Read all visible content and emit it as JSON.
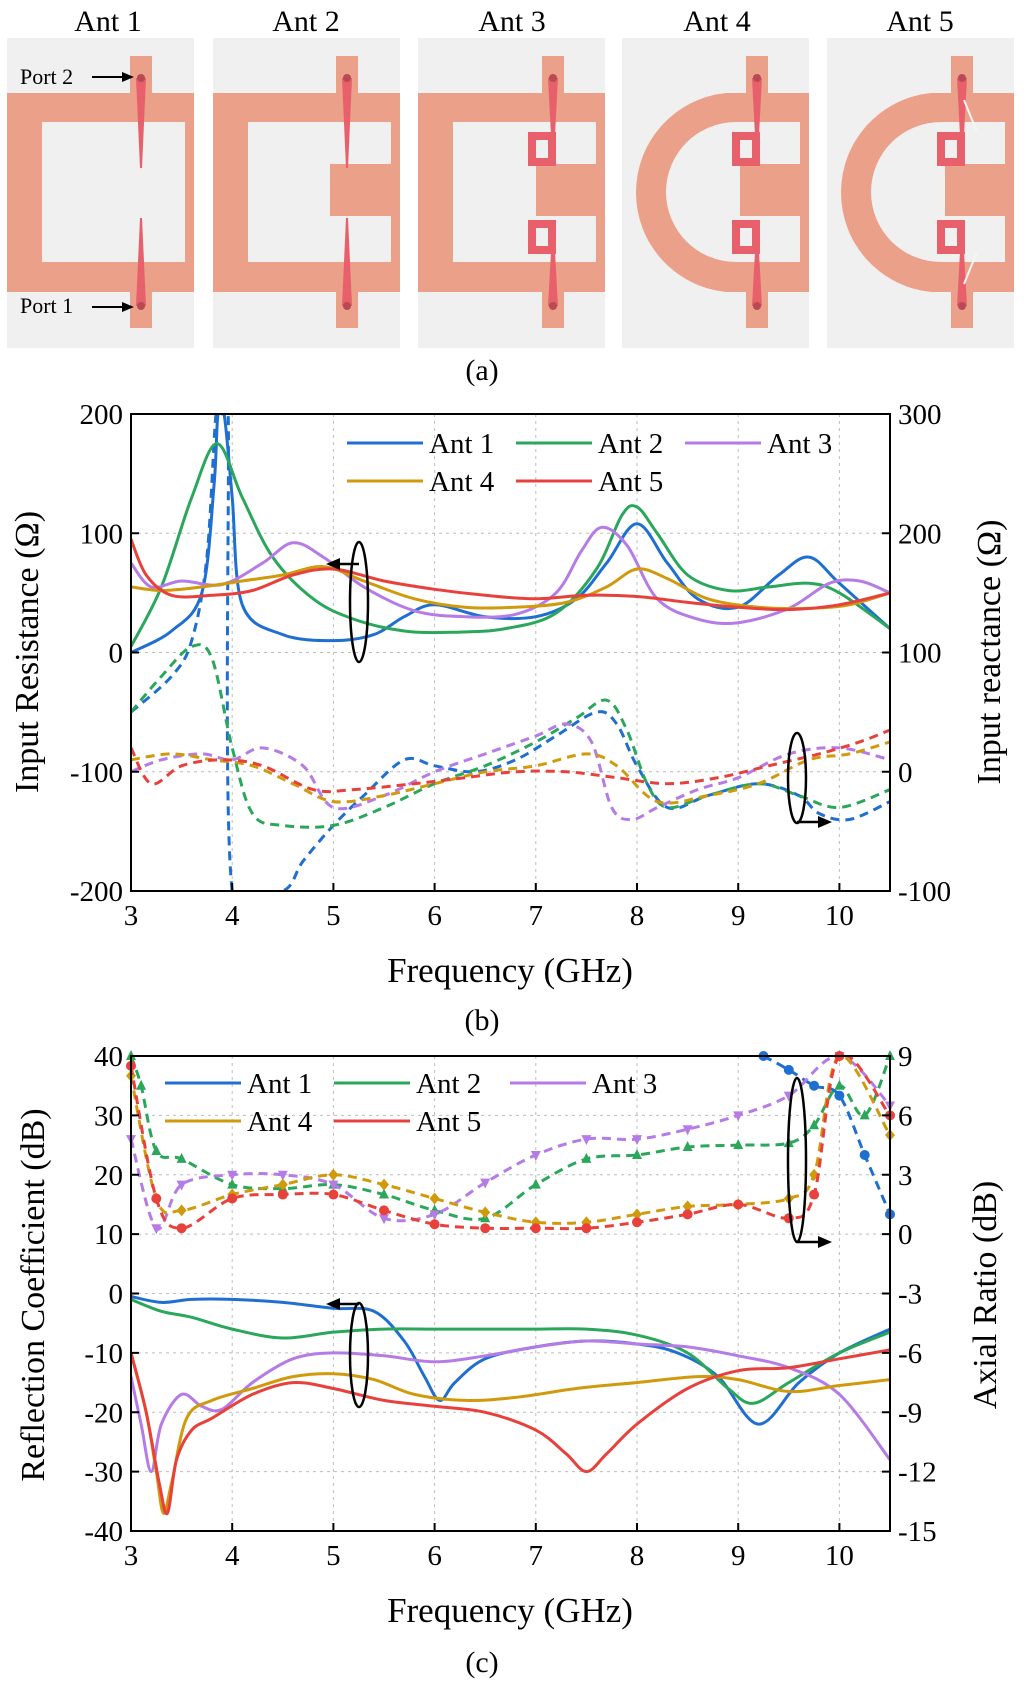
{
  "colors": {
    "substrate": "#f0f0f0",
    "patch": "#eba08a",
    "feed": "#e8606b",
    "ant1": "#1f6fd1",
    "ant2": "#2aa75a",
    "ant3": "#b57be6",
    "ant4": "#d19a0c",
    "ant5": "#e8413c"
  },
  "panel_a": {
    "titles": [
      "Ant 1",
      "Ant 2",
      "Ant 3",
      "Ant 4",
      "Ant 5"
    ],
    "port2_label": "Port 2",
    "port1_label": "Port 1",
    "caption": "(a)"
  },
  "panel_b": {
    "caption": "(b)"
  },
  "panel_c": {
    "caption": "(c)"
  },
  "chart_data": [
    {
      "type": "line",
      "panel": "b",
      "xlabel": "Frequency (GHz)",
      "ylabel": "Input Resistance (Ω)",
      "y2label": "Input reactance (Ω)",
      "xlim": [
        3,
        10.5
      ],
      "ylim": [
        -200,
        200
      ],
      "y2lim": [
        -100,
        300
      ],
      "xticks": [
        "3",
        "4",
        "5",
        "6",
        "7",
        "8",
        "9",
        "10"
      ],
      "yticks": [
        "200",
        "100",
        "0",
        "-100",
        "-200"
      ],
      "y2ticks": [
        "300",
        "200",
        "100",
        "0",
        "-100"
      ],
      "grid": true,
      "legend": [
        "Ant 1",
        "Ant 2",
        "Ant 3",
        "Ant 4",
        "Ant 5"
      ],
      "legend_position": "top-right",
      "annotations": [
        "solid lines → left axis (resistance)",
        "dashed lines → right axis (reactance)"
      ],
      "series": [
        {
          "name": "Ant 1",
          "axis": "left",
          "style": "solid",
          "x": [
            3.0,
            3.4,
            3.7,
            3.82,
            3.86,
            3.92,
            4.0,
            4.1,
            4.5,
            5.0,
            5.4,
            5.7,
            6.0,
            6.5,
            7.0,
            7.4,
            7.7,
            8.0,
            8.3,
            8.6,
            9.0,
            9.4,
            9.7,
            10.0,
            10.5
          ],
          "y": [
            0,
            18,
            50,
            140,
            200,
            200,
            130,
            40,
            15,
            10,
            15,
            30,
            40,
            30,
            30,
            45,
            75,
            108,
            75,
            45,
            38,
            65,
            80,
            58,
            20
          ]
        },
        {
          "name": "Ant 1",
          "axis": "right",
          "style": "dashed",
          "x": [
            3.0,
            3.4,
            3.6,
            3.75,
            3.84,
            3.9,
            3.96,
            4.0,
            4.5,
            4.7,
            5.0,
            5.3,
            5.7,
            6.0,
            6.4,
            6.8,
            7.2,
            7.6,
            7.8,
            8.0,
            8.3,
            8.7,
            9.2,
            9.6,
            9.8,
            10.1,
            10.5
          ],
          "y": [
            50,
            80,
            110,
            180,
            300,
            300,
            300,
            -100,
            -100,
            -75,
            -45,
            -20,
            10,
            5,
            0,
            10,
            30,
            50,
            40,
            5,
            -30,
            -20,
            -10,
            -20,
            -35,
            -40,
            -25
          ]
        },
        {
          "name": "Ant 2",
          "axis": "left",
          "style": "solid",
          "x": [
            3.0,
            3.3,
            3.6,
            3.85,
            4.1,
            4.4,
            4.8,
            5.2,
            5.7,
            6.2,
            6.7,
            7.2,
            7.6,
            7.85,
            8.0,
            8.2,
            8.5,
            8.9,
            9.3,
            9.7,
            10.0,
            10.5
          ],
          "y": [
            5,
            55,
            130,
            175,
            130,
            80,
            45,
            28,
            18,
            17,
            20,
            33,
            70,
            115,
            122,
            100,
            65,
            52,
            55,
            58,
            50,
            20
          ]
        },
        {
          "name": "Ant 2",
          "axis": "right",
          "style": "dashed",
          "x": [
            3.0,
            3.3,
            3.6,
            3.8,
            4.0,
            4.2,
            4.5,
            5.0,
            5.5,
            6.0,
            6.5,
            7.0,
            7.4,
            7.7,
            7.9,
            8.1,
            8.3,
            8.7,
            9.2,
            9.6,
            10.0,
            10.5
          ],
          "y": [
            50,
            80,
            105,
            95,
            20,
            -35,
            -45,
            -45,
            -30,
            -10,
            5,
            25,
            45,
            60,
            35,
            -10,
            -30,
            -20,
            -10,
            -20,
            -30,
            -15
          ]
        },
        {
          "name": "Ant 3",
          "axis": "left",
          "style": "solid",
          "x": [
            3.0,
            3.2,
            3.5,
            3.9,
            4.3,
            4.6,
            4.9,
            5.3,
            5.8,
            6.3,
            6.8,
            7.2,
            7.45,
            7.65,
            7.9,
            8.2,
            8.6,
            9.0,
            9.5,
            9.9,
            10.2,
            10.5
          ],
          "y": [
            75,
            55,
            60,
            57,
            75,
            92,
            80,
            55,
            35,
            30,
            32,
            50,
            85,
            105,
            90,
            45,
            28,
            25,
            37,
            58,
            60,
            50
          ]
        },
        {
          "name": "Ant 3",
          "axis": "right",
          "style": "dashed",
          "x": [
            3.0,
            3.3,
            3.7,
            4.0,
            4.3,
            4.7,
            5.0,
            5.5,
            6.0,
            6.5,
            7.0,
            7.3,
            7.55,
            7.75,
            7.95,
            8.2,
            8.6,
            9.0,
            9.5,
            10.0,
            10.5
          ],
          "y": [
            0,
            10,
            15,
            10,
            20,
            5,
            -30,
            -20,
            0,
            15,
            30,
            40,
            25,
            -30,
            -40,
            -30,
            -15,
            -5,
            15,
            20,
            10
          ]
        },
        {
          "name": "Ant 4",
          "axis": "left",
          "style": "solid",
          "x": [
            3.0,
            3.3,
            3.7,
            4.1,
            4.5,
            4.9,
            5.3,
            5.8,
            6.3,
            6.8,
            7.3,
            7.7,
            8.0,
            8.3,
            8.7,
            9.2,
            9.7,
            10.1,
            10.5
          ],
          "y": [
            55,
            52,
            55,
            60,
            65,
            72,
            60,
            45,
            38,
            38,
            42,
            55,
            70,
            62,
            45,
            38,
            37,
            40,
            50
          ]
        },
        {
          "name": "Ant 4",
          "axis": "right",
          "style": "dashed",
          "x": [
            3.0,
            3.4,
            3.8,
            4.2,
            4.6,
            5.0,
            5.5,
            6.0,
            6.5,
            7.0,
            7.5,
            7.8,
            8.2,
            8.7,
            9.2,
            9.7,
            10.1,
            10.5
          ],
          "y": [
            10,
            15,
            10,
            5,
            -10,
            -25,
            -20,
            -10,
            0,
            5,
            15,
            5,
            -25,
            -20,
            -10,
            10,
            15,
            25
          ]
        },
        {
          "name": "Ant 5",
          "axis": "left",
          "style": "solid",
          "x": [
            3.0,
            3.15,
            3.4,
            3.8,
            4.2,
            4.6,
            5.0,
            5.5,
            6.0,
            6.5,
            7.0,
            7.5,
            8.0,
            8.5,
            9.0,
            9.5,
            10.0,
            10.5
          ],
          "y": [
            95,
            65,
            48,
            48,
            52,
            65,
            70,
            60,
            53,
            48,
            45,
            48,
            47,
            42,
            38,
            36,
            40,
            50
          ]
        },
        {
          "name": "Ant 5",
          "axis": "right",
          "style": "dashed",
          "x": [
            3.0,
            3.2,
            3.5,
            3.9,
            4.3,
            4.8,
            5.2,
            5.8,
            6.3,
            6.8,
            7.3,
            7.8,
            8.3,
            8.8,
            9.3,
            9.8,
            10.2,
            10.5
          ],
          "y": [
            20,
            -10,
            5,
            10,
            5,
            -15,
            -15,
            -10,
            -5,
            0,
            0,
            -5,
            -10,
            -5,
            5,
            15,
            25,
            35
          ]
        }
      ]
    },
    {
      "type": "line",
      "panel": "c",
      "xlabel": "Frequency (GHz)",
      "ylabel": "Reflection Coefficient (dB)",
      "y2label": "Axial Ratio (dB)",
      "xlim": [
        3,
        10.5
      ],
      "ylim": [
        -40,
        40
      ],
      "y2lim": [
        -15,
        9
      ],
      "xticks": [
        "3",
        "4",
        "5",
        "6",
        "7",
        "8",
        "9",
        "10"
      ],
      "yticks": [
        "40",
        "30",
        "20",
        "10",
        "0",
        "-10",
        "-20",
        "-30",
        "-40"
      ],
      "y2ticks": [
        "9",
        "6",
        "3",
        "0",
        "-3",
        "-6",
        "-9",
        "-12",
        "-15"
      ],
      "grid": true,
      "legend": [
        "Ant 1",
        "Ant 2",
        "Ant 3",
        "Ant 4",
        "Ant 5"
      ],
      "legend_position": "top-left",
      "annotations": [
        "solid lines → left axis (reflection coefficient)",
        "dashed lines with markers → right axis (axial ratio)"
      ],
      "series": [
        {
          "name": "Ant 1",
          "axis": "left",
          "style": "solid",
          "x": [
            3.0,
            3.3,
            3.6,
            4.0,
            4.5,
            5.0,
            5.4,
            5.7,
            5.9,
            6.05,
            6.2,
            6.5,
            7.0,
            7.5,
            8.0,
            8.4,
            8.8,
            9.2,
            9.6,
            10.0,
            10.5
          ],
          "y": [
            -0.5,
            -1.5,
            -1,
            -1,
            -1.5,
            -2.5,
            -3,
            -8,
            -14,
            -18,
            -15,
            -11,
            -9,
            -8,
            -8.5,
            -10,
            -14,
            -22,
            -15,
            -10,
            -6
          ]
        },
        {
          "name": "Ant 1",
          "axis": "right",
          "style": "dashed",
          "marker": "circle",
          "x": [
            9.25,
            9.5,
            9.75,
            10.0,
            10.25,
            10.5
          ],
          "y": [
            9,
            8.3,
            7.5,
            7.0,
            4.0,
            1.0
          ]
        },
        {
          "name": "Ant 2",
          "axis": "left",
          "style": "solid",
          "x": [
            3.0,
            3.3,
            3.6,
            4.0,
            4.5,
            5.0,
            5.5,
            6.0,
            6.5,
            7.0,
            7.5,
            8.0,
            8.5,
            8.9,
            9.15,
            9.5,
            10.0,
            10.5
          ],
          "y": [
            -1,
            -3,
            -4,
            -6,
            -7.5,
            -6.5,
            -6,
            -6,
            -6,
            -6,
            -6,
            -7,
            -10,
            -16,
            -18.5,
            -15,
            -10,
            -6.5
          ]
        },
        {
          "name": "Ant 2",
          "axis": "right",
          "style": "dashed",
          "marker": "triangle",
          "x": [
            3.0,
            3.1,
            3.25,
            3.5,
            4.0,
            4.5,
            5.0,
            5.5,
            6.0,
            6.5,
            7.0,
            7.5,
            8.0,
            8.5,
            9.0,
            9.5,
            9.75,
            10.0,
            10.25,
            10.5
          ],
          "y": [
            9,
            7.5,
            4.2,
            3.8,
            2.5,
            2.3,
            2.5,
            2.0,
            1.2,
            0.8,
            2.5,
            3.8,
            4.0,
            4.4,
            4.5,
            4.6,
            5.5,
            7.5,
            6.0,
            9.0
          ]
        },
        {
          "name": "Ant 3",
          "axis": "left",
          "style": "solid",
          "x": [
            3.0,
            3.1,
            3.2,
            3.3,
            3.5,
            3.7,
            3.9,
            4.2,
            4.6,
            5.0,
            5.5,
            6.0,
            6.5,
            7.0,
            7.5,
            8.0,
            8.5,
            9.0,
            9.5,
            10.0,
            10.5
          ],
          "y": [
            -14,
            -22,
            -30,
            -22,
            -17,
            -19,
            -19.5,
            -15,
            -11,
            -10,
            -10.5,
            -11.5,
            -10.5,
            -9,
            -8,
            -8.5,
            -9,
            -10.5,
            -12.5,
            -17,
            -28
          ]
        },
        {
          "name": "Ant 3",
          "axis": "right",
          "style": "dashed",
          "marker": "triangle-down",
          "x": [
            3.0,
            3.25,
            3.5,
            4.0,
            4.5,
            5.0,
            5.5,
            6.0,
            6.5,
            7.0,
            7.5,
            8.0,
            8.5,
            9.0,
            9.5,
            10.0,
            10.5
          ],
          "y": [
            4.8,
            0.3,
            2.5,
            3.0,
            3.0,
            2.5,
            0.8,
            1.0,
            2.6,
            4.0,
            4.8,
            4.8,
            5.3,
            6.0,
            7.0,
            9.0,
            6.5
          ]
        },
        {
          "name": "Ant 4",
          "axis": "left",
          "style": "solid",
          "x": [
            3.0,
            3.15,
            3.25,
            3.32,
            3.4,
            3.55,
            3.8,
            4.2,
            4.6,
            5.0,
            5.4,
            5.8,
            6.3,
            6.8,
            7.4,
            8.0,
            8.6,
            9.0,
            9.5,
            10.0,
            10.5
          ],
          "y": [
            -10,
            -20,
            -30,
            -37,
            -32,
            -21,
            -18,
            -16,
            -14,
            -13.5,
            -14.5,
            -17,
            -18,
            -17.5,
            -16,
            -15,
            -14,
            -14.5,
            -16.5,
            -15.5,
            -14.5
          ]
        },
        {
          "name": "Ant 4",
          "axis": "right",
          "style": "dashed",
          "marker": "diamond",
          "x": [
            3.0,
            3.25,
            3.5,
            4.0,
            4.5,
            5.0,
            5.5,
            6.0,
            6.5,
            7.0,
            7.5,
            8.0,
            8.5,
            9.0,
            9.5,
            9.75,
            10.0,
            10.5
          ],
          "y": [
            8.0,
            1.8,
            1.2,
            2.0,
            2.5,
            3.0,
            2.5,
            1.8,
            1.1,
            0.6,
            0.6,
            1.0,
            1.4,
            1.5,
            1.8,
            3.0,
            9.0,
            5.0
          ]
        },
        {
          "name": "Ant 5",
          "axis": "left",
          "style": "solid",
          "x": [
            3.0,
            3.15,
            3.28,
            3.36,
            3.45,
            3.6,
            3.8,
            4.2,
            4.6,
            5.0,
            5.5,
            6.0,
            6.5,
            7.0,
            7.3,
            7.5,
            7.7,
            8.0,
            8.5,
            9.0,
            9.5,
            10.0,
            10.5
          ],
          "y": [
            -10,
            -20,
            -32,
            -37,
            -28,
            -23,
            -21,
            -17,
            -15,
            -16,
            -18,
            -19,
            -20,
            -23,
            -27,
            -30,
            -27,
            -22,
            -16,
            -13,
            -12.5,
            -11,
            -9.5
          ]
        },
        {
          "name": "Ant 5",
          "axis": "right",
          "style": "dashed",
          "marker": "circle",
          "x": [
            3.0,
            3.25,
            3.5,
            4.0,
            4.5,
            5.0,
            5.5,
            6.0,
            6.5,
            7.0,
            7.5,
            8.0,
            8.5,
            9.0,
            9.5,
            9.75,
            10.0,
            10.5
          ],
          "y": [
            8.5,
            1.8,
            0.3,
            1.8,
            2.0,
            2.0,
            1.2,
            0.5,
            0.3,
            0.3,
            0.3,
            0.6,
            1.0,
            1.5,
            0.8,
            2.0,
            9.0,
            6.0
          ]
        }
      ]
    }
  ]
}
